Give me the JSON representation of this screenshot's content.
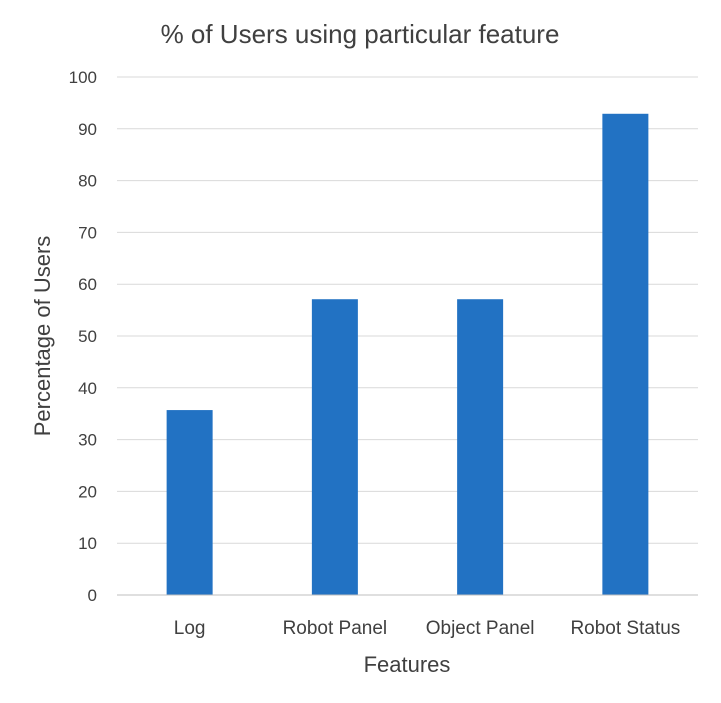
{
  "chart_data": {
    "type": "bar",
    "title": "% of Users using particular feature",
    "xlabel": "Features",
    "ylabel": "Percentage of Users",
    "categories": [
      "Log",
      "Robot Panel",
      "Object Panel",
      "Robot Status"
    ],
    "values": [
      35.7,
      57.1,
      57.1,
      92.9
    ],
    "ylim": [
      0,
      100
    ],
    "yticks": [
      "0",
      "10",
      "20",
      "30",
      "40",
      "50",
      "60",
      "70",
      "80",
      "90",
      "100"
    ],
    "grid": true,
    "legend": "none",
    "bar_color": "#2272c3"
  }
}
